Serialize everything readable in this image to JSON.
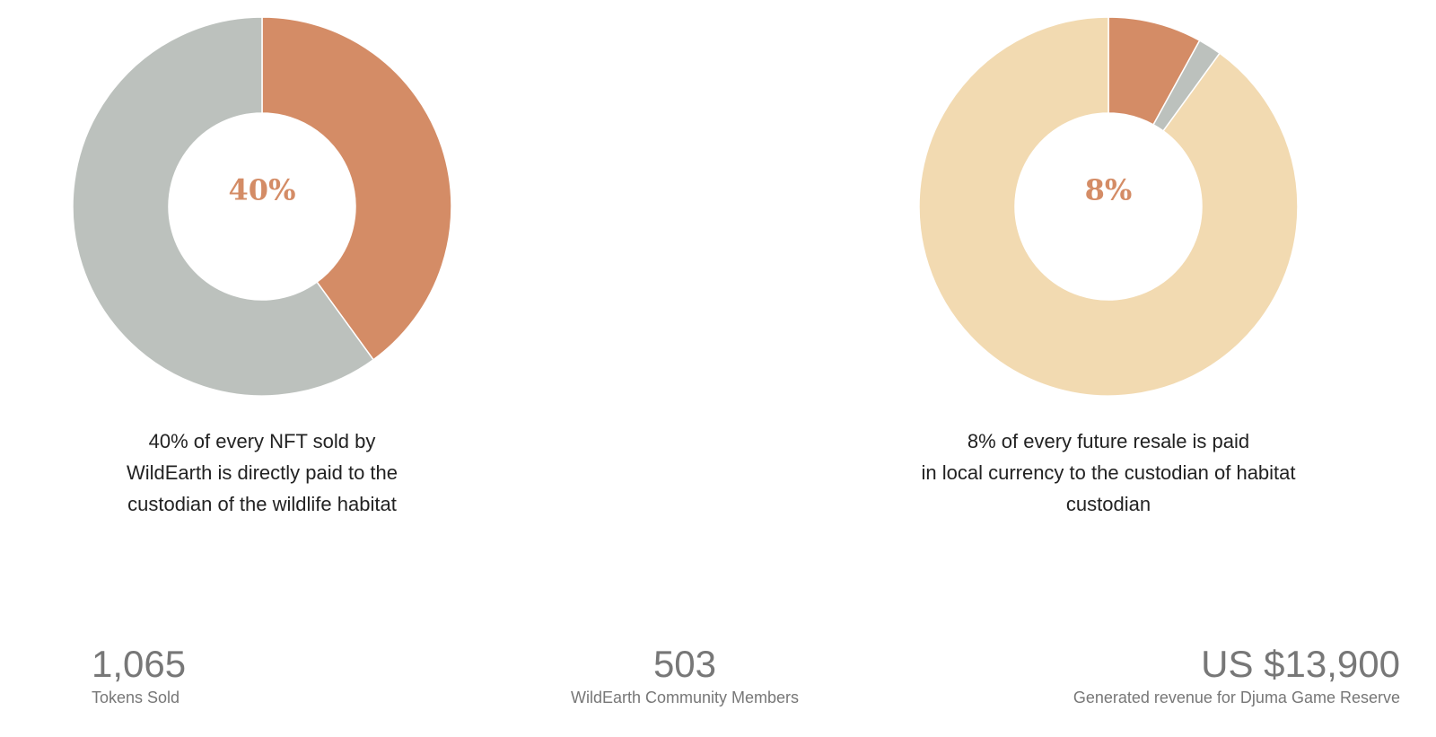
{
  "colors": {
    "terracotta": "#d48c66",
    "grey": "#bcc1bd",
    "sand": "#f2dab1",
    "stat_text": "#777777",
    "caption_text": "#222222"
  },
  "chart_data": [
    {
      "type": "pie",
      "donut": true,
      "center_label": "40%",
      "slices": [
        {
          "value": 40,
          "color": "#d48c66"
        },
        {
          "value": 60,
          "color": "#bcc1bd"
        }
      ],
      "caption_lines": [
        "40% of every NFT sold by",
        "WildEarth is directly paid to the",
        "custodian of the wildlife habitat"
      ]
    },
    {
      "type": "pie",
      "donut": true,
      "center_label": "8%",
      "slices": [
        {
          "value": 8,
          "color": "#d48c66"
        },
        {
          "value": 2,
          "color": "#bcc1bd"
        },
        {
          "value": 90,
          "color": "#f2dab1"
        }
      ],
      "caption_lines": [
        "8% of every future resale is paid",
        "in local currency to the custodian of habitat",
        "custodian"
      ]
    }
  ],
  "stats": [
    {
      "value": "1,065",
      "label": "Tokens Sold"
    },
    {
      "value": "503",
      "label": "WildEarth Community Members"
    },
    {
      "value": "US $13,900",
      "label": "Generated revenue for Djuma Game Reserve"
    }
  ]
}
